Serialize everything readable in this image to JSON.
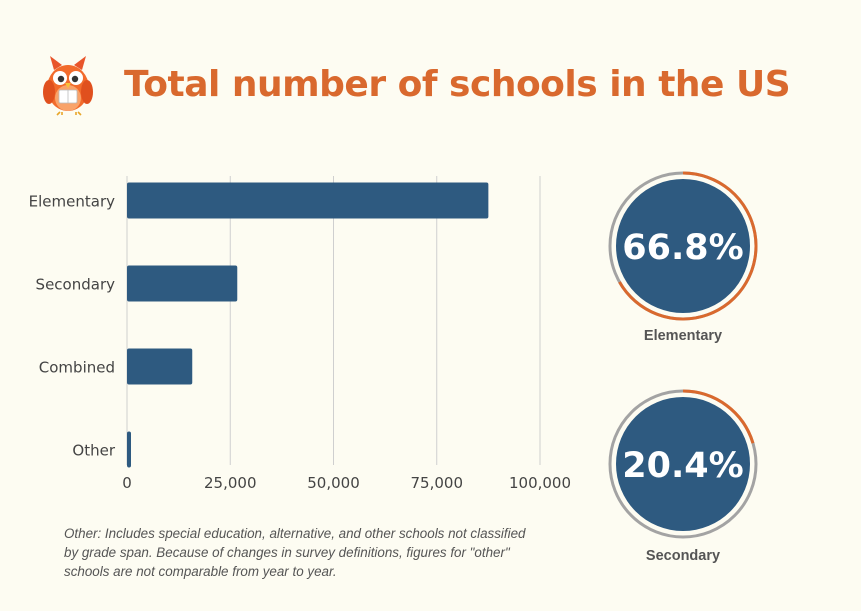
{
  "title": "Total number of schools in the US",
  "chart_data": {
    "type": "bar",
    "orientation": "horizontal",
    "categories": [
      "Elementary",
      "Secondary",
      "Combined",
      "Other"
    ],
    "values": [
      87500,
      26700,
      15800,
      900
    ],
    "xlim": [
      0,
      100000
    ],
    "xticks": [
      "0",
      "25,000",
      "50,000",
      "75,000",
      "100,000"
    ],
    "grid": true,
    "bar_color": "#2e5a80"
  },
  "kpis": [
    {
      "value": "66.8%",
      "fraction": 0.668,
      "label": "Elementary"
    },
    {
      "value": "20.4%",
      "fraction": 0.204,
      "label": "Secondary"
    }
  ],
  "footnote": "Other: Includes special education, alternative, and other schools not classified by grade span. Because of changes in survey definitions, figures for \"other\" schools are not comparable from year to year.",
  "colors": {
    "accent": "#d9692e",
    "bar": "#2e5a80",
    "ring_track": "#a3a3a3"
  },
  "logo_icon": "owl-icon"
}
